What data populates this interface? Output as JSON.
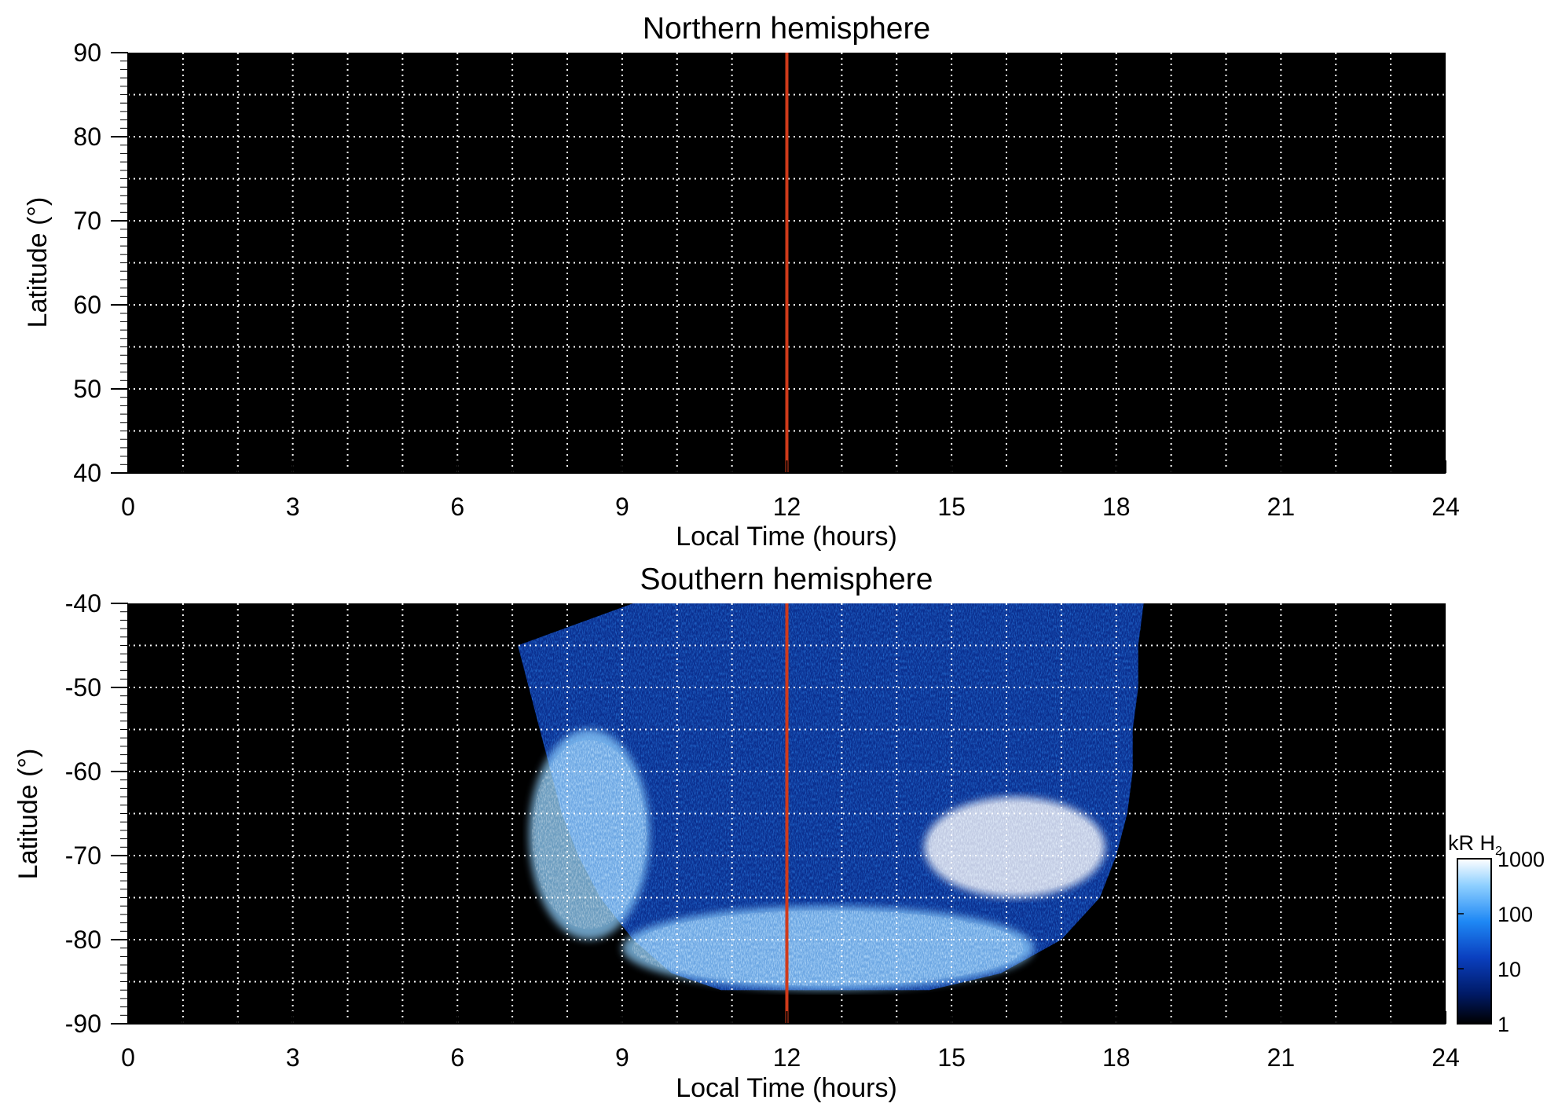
{
  "chart_data": [
    {
      "type": "heatmap",
      "title": "Northern hemisphere",
      "xlabel": "Local Time (hours)",
      "ylabel": "Latitude (°)",
      "xlim": [
        0,
        24
      ],
      "ylim": [
        40,
        90
      ],
      "xticks": [
        "0",
        "3",
        "6",
        "9",
        "12",
        "15",
        "18",
        "21",
        "24"
      ],
      "yticks": [
        "40",
        "50",
        "60",
        "70",
        "80",
        "90"
      ],
      "grid": true,
      "grid_x_step_hours": 1,
      "grid_y_step_deg": 5,
      "reference_line": {
        "x": 12,
        "color": "#d03a1a"
      },
      "background_color": "#000000",
      "emission": "none"
    },
    {
      "type": "heatmap",
      "title": "Southern hemisphere",
      "xlabel": "Local Time (hours)",
      "ylabel": "Latitude (°)",
      "xlim": [
        0,
        24
      ],
      "ylim": [
        -90,
        -40
      ],
      "xticks": [
        "0",
        "3",
        "6",
        "9",
        "12",
        "15",
        "18",
        "21",
        "24"
      ],
      "yticks": [
        "-40",
        "-50",
        "-60",
        "-70",
        "-80",
        "-90"
      ],
      "grid": true,
      "grid_x_step_hours": 1,
      "grid_y_step_deg": 5,
      "reference_line": {
        "x": 12,
        "color": "#d03a1a"
      },
      "background_color": "#000000",
      "coverage": {
        "lt_at_lat": [
          {
            "lat": -40,
            "lt_min": 9.2,
            "lt_max": 18.5
          },
          {
            "lat": -45,
            "lt_min": 7.1,
            "lt_max": 18.4
          },
          {
            "lat": -50,
            "lt_min": 7.3,
            "lt_max": 18.4
          },
          {
            "lat": -55,
            "lt_min": 7.5,
            "lt_max": 18.3
          },
          {
            "lat": -60,
            "lt_min": 7.7,
            "lt_max": 18.3
          },
          {
            "lat": -65,
            "lt_min": 7.9,
            "lt_max": 18.2
          },
          {
            "lat": -70,
            "lt_min": 8.2,
            "lt_max": 18.0
          },
          {
            "lat": -75,
            "lt_min": 8.6,
            "lt_max": 17.7
          },
          {
            "lat": -80,
            "lt_min": 9.2,
            "lt_max": 17.0
          },
          {
            "lat": -84,
            "lt_min": 9.9,
            "lt_max": 15.9
          },
          {
            "lat": -86,
            "lt_min": 10.8,
            "lt_max": 14.6
          }
        ]
      },
      "bright_regions": [
        {
          "description": "auroral oval near pole",
          "lt": [
            9.0,
            16.5
          ],
          "lat": [
            -86,
            -76
          ],
          "level_kR": 500
        },
        {
          "description": "afternoon auroral patch",
          "lt": [
            14.5,
            17.8
          ],
          "lat": [
            -75,
            -63
          ],
          "level_kR": 800
        },
        {
          "description": "dawn arc",
          "lt": [
            7.3,
            9.5
          ],
          "lat": [
            -80,
            -55
          ],
          "level_kR": 150
        }
      ],
      "colorbar": {
        "label": "kR H",
        "label_subscript": "2",
        "scale": "log",
        "range": [
          1,
          1000
        ],
        "ticks": [
          "1",
          "10",
          "100",
          "1000"
        ],
        "colors": [
          "#000000",
          "#001a66",
          "#0a3fbf",
          "#1e88f5",
          "#8fd0ff",
          "#ffffff"
        ]
      }
    }
  ]
}
